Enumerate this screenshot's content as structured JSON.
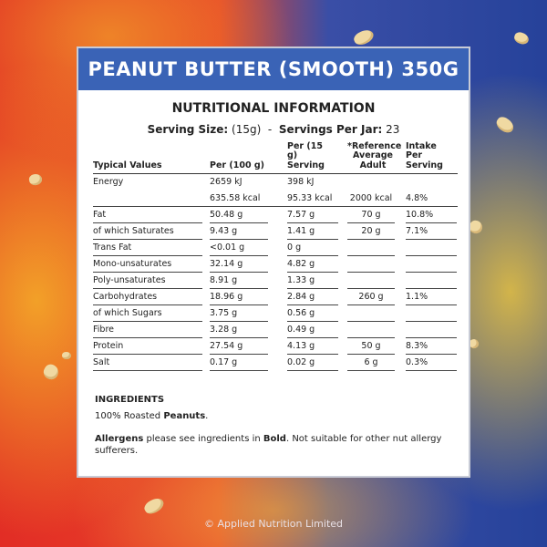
{
  "title": "PEANUT BUTTER (SMOOTH) 350G",
  "section_title": "NUTRITIONAL INFORMATION",
  "serving": {
    "size_label": "Serving Size:",
    "size_value": "(15g)",
    "separator": "-",
    "per_jar_label": "Servings Per Jar:",
    "per_jar_value": "23"
  },
  "table": {
    "headers": [
      "Typical Values",
      "Per (100 g)",
      "Per (15 g) Serving",
      "*Reference Average Adult",
      "Intake Per Serving"
    ],
    "rows": [
      {
        "label": "Energy",
        "v1": "2659 kJ",
        "v2": "398 kJ",
        "v3": "",
        "v4": ""
      },
      {
        "label": "",
        "v1": "635.58 kcal",
        "v2": "95.33 kcal",
        "v3": "2000 kcal",
        "v4": "4.8%"
      },
      {
        "label": "Fat",
        "v1": "50.48 g",
        "v2": "7.57 g",
        "v3": "70 g",
        "v4": "10.8%"
      },
      {
        "label": "of which Saturates",
        "v1": "9.43 g",
        "v2": "1.41 g",
        "v3": "20 g",
        "v4": "7.1%"
      },
      {
        "label": "Trans Fat",
        "v1": "<0.01 g",
        "v2": "0 g",
        "v3": "",
        "v4": ""
      },
      {
        "label": "Mono-unsaturates",
        "v1": "32.14 g",
        "v2": "4.82 g",
        "v3": "",
        "v4": ""
      },
      {
        "label": "Poly-unsaturates",
        "v1": "8.91 g",
        "v2": "1.33 g",
        "v3": "",
        "v4": ""
      },
      {
        "label": "Carbohydrates",
        "v1": "18.96 g",
        "v2": "2.84 g",
        "v3": "260 g",
        "v4": "1.1%"
      },
      {
        "label": "of which Sugars",
        "v1": "3.75 g",
        "v2": "0.56 g",
        "v3": "",
        "v4": ""
      },
      {
        "label": "Fibre",
        "v1": "3.28 g",
        "v2": "0.49 g",
        "v3": "",
        "v4": ""
      },
      {
        "label": "Protein",
        "v1": "27.54 g",
        "v2": "4.13 g",
        "v3": "50 g",
        "v4": "8.3%"
      },
      {
        "label": "Salt",
        "v1": "0.17 g",
        "v2": "0.02 g",
        "v3": "6 g",
        "v4": "0.3%"
      }
    ]
  },
  "ingredients": {
    "title": "INGREDIENTS",
    "text_prefix": "100% Roasted ",
    "text_bold": "Peanuts",
    "text_suffix": "."
  },
  "allergens": {
    "label": "Allergens",
    "text1": " please see ingredients in ",
    "bold": "Bold",
    "text2": ". Not suitable for other nut allergy sufferers."
  },
  "footer": "© Applied Nutrition Limited",
  "colors": {
    "header_blue": "#3a63b6",
    "bg_red": "#e22d25",
    "bg_blue": "#26429a",
    "accent_yellow": "#f5b428"
  }
}
